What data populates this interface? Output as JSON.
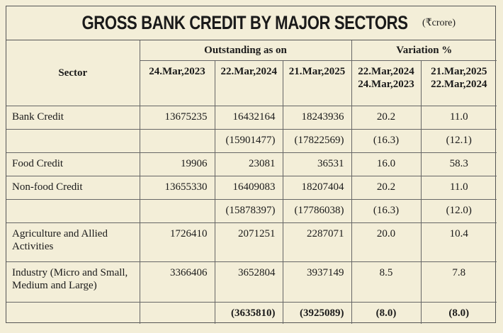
{
  "title": {
    "main": "GROSS BANK CREDIT BY MAJOR SECTORS",
    "unit": "(₹crore)"
  },
  "header": {
    "sector": "Sector",
    "outstanding_group": "Outstanding as on",
    "variation_group": "Variation %",
    "dates": [
      "24.Mar,2023",
      "22.Mar,2024",
      "21.Mar,2025"
    ],
    "variation_cols": [
      {
        "line1": "22.Mar,2024",
        "line2": "24.Mar,2023"
      },
      {
        "line1": "21.Mar,2025",
        "line2": "22.Mar,2024"
      }
    ]
  },
  "rows": [
    {
      "sector": "Bank Credit",
      "v2023": "13675235",
      "v2024": "16432164",
      "v2025": "18243936",
      "var1": "20.2",
      "var2": "11.0"
    },
    {
      "sector": "",
      "v2023": "",
      "v2024": "(15901477)",
      "v2025": "(17822569)",
      "var1": "(16.3)",
      "var2": "(12.1)"
    },
    {
      "sector": "Food Credit",
      "v2023": "19906",
      "v2024": "23081",
      "v2025": "36531",
      "var1": "16.0",
      "var2": "58.3"
    },
    {
      "sector": "Non-food Credit",
      "v2023": "13655330",
      "v2024": "16409083",
      "v2025": "18207404",
      "var1": "20.2",
      "var2": "11.0"
    },
    {
      "sector": "",
      "v2023": "",
      "v2024": "(15878397)",
      "v2025": "(17786038)",
      "var1": "(16.3)",
      "var2": "(12.0)"
    },
    {
      "sector": "Agriculture and Allied Activities",
      "v2023": "1726410",
      "v2024": "2071251",
      "v2025": "2287071",
      "var1": "20.0",
      "var2": "10.4"
    },
    {
      "sector": "Industry (Micro and Small, Medium and Large)",
      "v2023": "3366406",
      "v2024": "3652804",
      "v2025": "3937149",
      "var1": "8.5",
      "var2": "7.8"
    },
    {
      "sector": "",
      "v2023": "",
      "v2024": "(3635810)",
      "v2025": "(3925089)",
      "var1": "(8.0)",
      "var2": "(8.0)"
    }
  ]
}
